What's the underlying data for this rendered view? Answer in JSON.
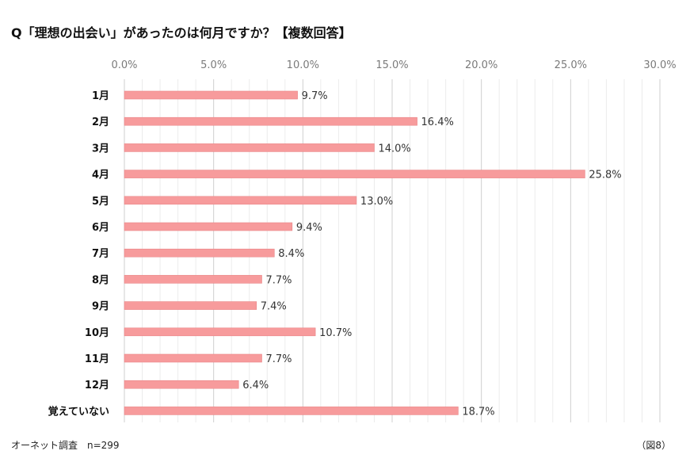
{
  "footer": {
    "source": "オーネット調査　n=299",
    "figure": "（図8）"
  },
  "colors": {
    "bar": "#f79b9c",
    "bar_border": "#e98587",
    "grid_major": "#cfcfcf",
    "grid_minor": "#ececec",
    "axis_label": "#7a7a7a",
    "category_label": "#111111",
    "value_label": "#333333"
  },
  "chart_data": {
    "type": "bar",
    "orientation": "horizontal",
    "title": "Q「理想の出会い」があったのは何月ですか？【複数回答】",
    "categories": [
      "1月",
      "2月",
      "3月",
      "4月",
      "5月",
      "6月",
      "7月",
      "8月",
      "9月",
      "10月",
      "11月",
      "12月",
      "覚えていない"
    ],
    "values": [
      9.7,
      16.4,
      14.0,
      25.8,
      13.0,
      9.4,
      8.4,
      7.7,
      7.4,
      10.7,
      7.7,
      6.4,
      18.7
    ],
    "value_labels": [
      "9.7%",
      "16.4%",
      "14.0%",
      "25.8%",
      "13.0%",
      "9.4%",
      "8.4%",
      "7.7%",
      "7.4%",
      "10.7%",
      "7.7%",
      "6.4%",
      "18.7%"
    ],
    "xlim": [
      0,
      30
    ],
    "xticks": [
      0,
      5,
      10,
      15,
      20,
      25,
      30
    ],
    "xtick_labels": [
      "0.0%",
      "5.0%",
      "10.0%",
      "15.0%",
      "20.0%",
      "25.0%",
      "30.0%"
    ],
    "minor_grid_step": 1,
    "xaxis_position": "top",
    "xlabel": "",
    "ylabel": "",
    "grid": true,
    "legend": false
  }
}
